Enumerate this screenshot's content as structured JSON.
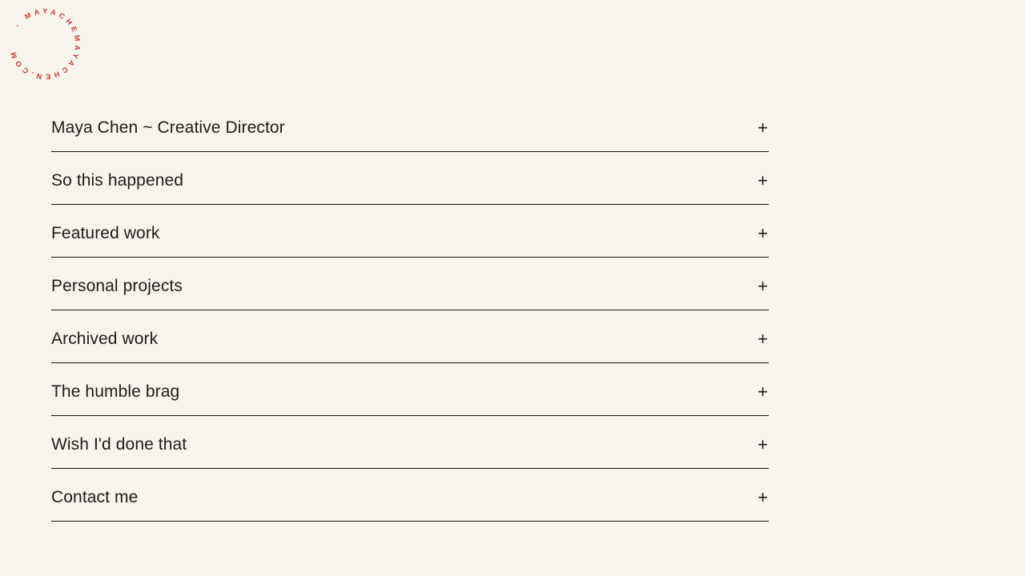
{
  "logo": {
    "circular_text": "· MAYACHEMAYACHEN.COM",
    "color": "#c53a2d"
  },
  "accordion": {
    "items": [
      {
        "label": "Maya Chen ~ Creative Director",
        "toggle_icon": "+"
      },
      {
        "label": "So this happened",
        "toggle_icon": "+"
      },
      {
        "label": "Featured work",
        "toggle_icon": "+"
      },
      {
        "label": "Personal projects",
        "toggle_icon": "+"
      },
      {
        "label": "Archived work",
        "toggle_icon": "+"
      },
      {
        "label": "The humble brag",
        "toggle_icon": "+"
      },
      {
        "label": "Wish I'd done that",
        "toggle_icon": "+"
      },
      {
        "label": "Contact me",
        "toggle_icon": "+"
      }
    ]
  },
  "colors": {
    "background": "#f7f4ed",
    "text": "#1e1c19",
    "divider": "#1b1a18",
    "accent": "#c53a2d"
  }
}
